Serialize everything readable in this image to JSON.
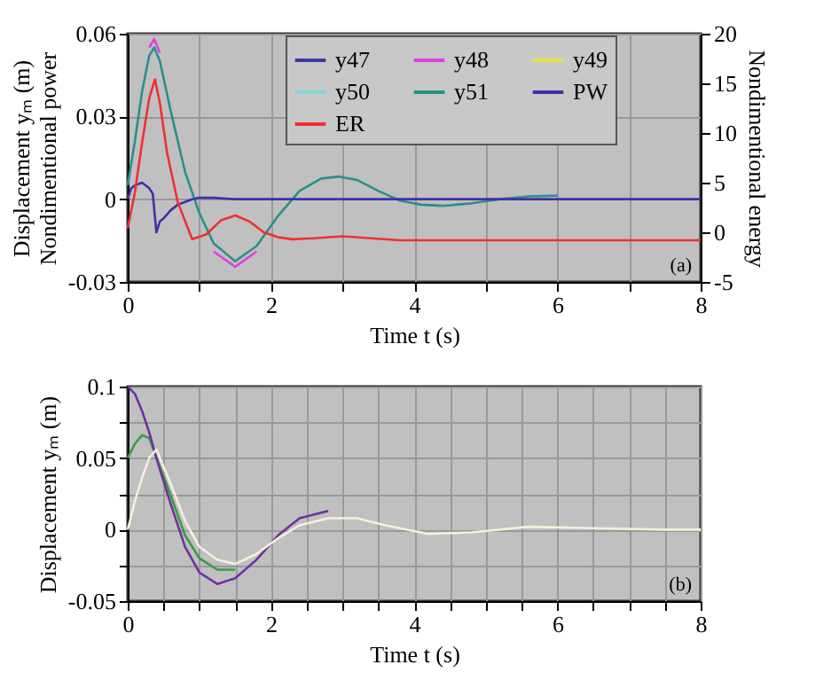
{
  "chart_data": [
    {
      "type": "line",
      "xlabel": "Time t (s)",
      "ylabel": "Displacement yₘ (m)\nNondimentional power",
      "y2label": "Nondimentional energy",
      "xlim": [
        0,
        8
      ],
      "xticks": [
        0,
        {
          "value": 1,
          "label": null
        },
        2,
        {
          "value": 3,
          "label": null
        },
        4,
        {
          "value": 5,
          "label": null
        },
        6,
        {
          "value": 7,
          "label": null
        },
        8
      ],
      "ylim": [
        -0.03,
        0.06
      ],
      "yticks": [
        -0.03,
        0,
        0.03,
        0.06
      ],
      "y2lim": [
        -5,
        20
      ],
      "y2ticks": [
        -5,
        0,
        5,
        10,
        15,
        20
      ],
      "grid": true,
      "legend": "top right",
      "annotations": [
        "(a)"
      ],
      "series": [
        {
          "name": "y47",
          "color": "#3a3aa0"
        },
        {
          "name": "y48",
          "color": "#e040e0",
          "x": [
            0.3,
            0.37,
            0.45,
            0.8,
            1.2,
            1.5,
            1.8
          ],
          "values": [
            0.055,
            0.058,
            0.053,
            null,
            -0.019,
            -0.0245,
            -0.019
          ]
        },
        {
          "name": "y49",
          "color": "#e8e040"
        },
        {
          "name": "y50",
          "color": "#80d8d8"
        },
        {
          "name": "y51",
          "color": "#2a9088",
          "x": [
            0,
            0.1,
            0.2,
            0.3,
            0.37,
            0.45,
            0.6,
            0.8,
            1.0,
            1.2,
            1.5,
            1.8,
            2.1,
            2.4,
            2.7,
            2.95,
            3.2,
            3.5,
            3.8,
            4.1,
            4.4,
            4.8,
            5.2,
            5.6,
            6.0
          ],
          "values": [
            0.005,
            0.021,
            0.039,
            0.052,
            0.055,
            0.05,
            0.032,
            0.01,
            -0.005,
            -0.016,
            -0.0225,
            -0.017,
            -0.006,
            0.003,
            0.0075,
            0.0082,
            0.007,
            0.003,
            -0.0005,
            -0.002,
            -0.0024,
            -0.0015,
            0,
            0.001,
            0.0013
          ]
        },
        {
          "name": "PW",
          "color": "#4030a8",
          "x": [
            0,
            0.05,
            0.1,
            0.2,
            0.3,
            0.35,
            0.4,
            0.45,
            0.5,
            0.6,
            0.7,
            0.8,
            0.9,
            1.0,
            1.2,
            1.5,
            2,
            3,
            4,
            5,
            6,
            7,
            8
          ],
          "values": [
            0,
            0.004,
            0.005,
            0.006,
            0.004,
            0.002,
            -0.012,
            -0.008,
            -0.007,
            -0.004,
            -0.002,
            -0.001,
            0,
            0.0005,
            0.0005,
            0,
            0,
            0,
            0,
            0,
            0,
            0,
            0
          ]
        },
        {
          "name": "ER",
          "color": "#f03030",
          "axis": "y2",
          "x": [
            0,
            0.1,
            0.2,
            0.3,
            0.38,
            0.45,
            0.55,
            0.7,
            0.9,
            1.1,
            1.3,
            1.5,
            1.7,
            1.9,
            2.1,
            2.3,
            2.6,
            3.0,
            3.4,
            3.8,
            4.5,
            5.5,
            6.5,
            8
          ],
          "values": [
            0.4,
            4,
            9,
            13.5,
            15.4,
            13,
            8,
            3,
            -0.7,
            -0.2,
            1.2,
            1.7,
            1.1,
            0,
            -0.5,
            -0.7,
            -0.6,
            -0.4,
            -0.6,
            -0.8,
            -0.8,
            -0.8,
            -0.8,
            -0.8
          ]
        }
      ]
    },
    {
      "type": "line",
      "xlabel": "Time t (s)",
      "ylabel": "Displacement yₘ (m)",
      "xlim": [
        0,
        8
      ],
      "xticks": [
        0,
        {
          "value": 0.5,
          "label": null
        },
        {
          "value": 1,
          "label": null
        },
        {
          "value": 1.5,
          "label": null
        },
        2,
        {
          "value": 2.5,
          "label": null
        },
        {
          "value": 3,
          "label": null
        },
        {
          "value": 3.5,
          "label": null
        },
        4,
        {
          "value": 4.5,
          "label": null
        },
        {
          "value": 5,
          "label": null
        },
        {
          "value": 5.5,
          "label": null
        },
        6,
        {
          "value": 6.5,
          "label": null
        },
        {
          "value": 7,
          "label": null
        },
        {
          "value": 7.5,
          "label": null
        },
        8
      ],
      "ylim": [
        -0.05,
        0.1
      ],
      "yticks": [
        -0.05,
        {
          "value": -0.025,
          "label": null
        },
        0,
        {
          "value": 0.025,
          "label": null
        },
        0.05,
        {
          "value": 0.075,
          "label": null
        },
        0.1
      ],
      "grid": true,
      "annotations": [
        "(b)"
      ],
      "series": [
        {
          "color": "#30a040",
          "x": [
            0,
            0.1,
            0.2,
            0.3,
            0.6,
            0.8,
            1.0,
            1.25,
            1.5
          ],
          "values": [
            0.05,
            0.06,
            0.066,
            0.064,
            0.024,
            -0.004,
            -0.02,
            -0.028,
            -0.028
          ]
        },
        {
          "color": "#7030a0",
          "x": [
            0,
            0.1,
            0.2,
            0.3,
            0.4,
            0.6,
            0.8,
            1.0,
            1.25,
            1.5,
            1.8,
            2.1,
            2.4,
            2.8
          ],
          "values": [
            0.1,
            0.095,
            0.083,
            0.068,
            0.05,
            0.018,
            -0.012,
            -0.03,
            -0.038,
            -0.034,
            -0.021,
            -0.004,
            0.008,
            0.013
          ]
        },
        {
          "color": "#f4f0dc",
          "x": [
            0,
            0.1,
            0.2,
            0.3,
            0.4,
            0.6,
            0.8,
            1.0,
            1.25,
            1.5,
            1.8,
            2.1,
            2.4,
            2.8,
            3.2,
            3.6,
            4.2,
            4.8,
            5.6,
            6.5,
            7.5,
            8
          ],
          "values": [
            0,
            0.02,
            0.036,
            0.05,
            0.056,
            0.032,
            0.006,
            -0.012,
            -0.021,
            -0.024,
            -0.017,
            -0.006,
            0.003,
            0.008,
            0.008,
            0.003,
            -0.003,
            -0.002,
            0.002,
            0.001,
            0,
            0
          ]
        }
      ]
    }
  ]
}
